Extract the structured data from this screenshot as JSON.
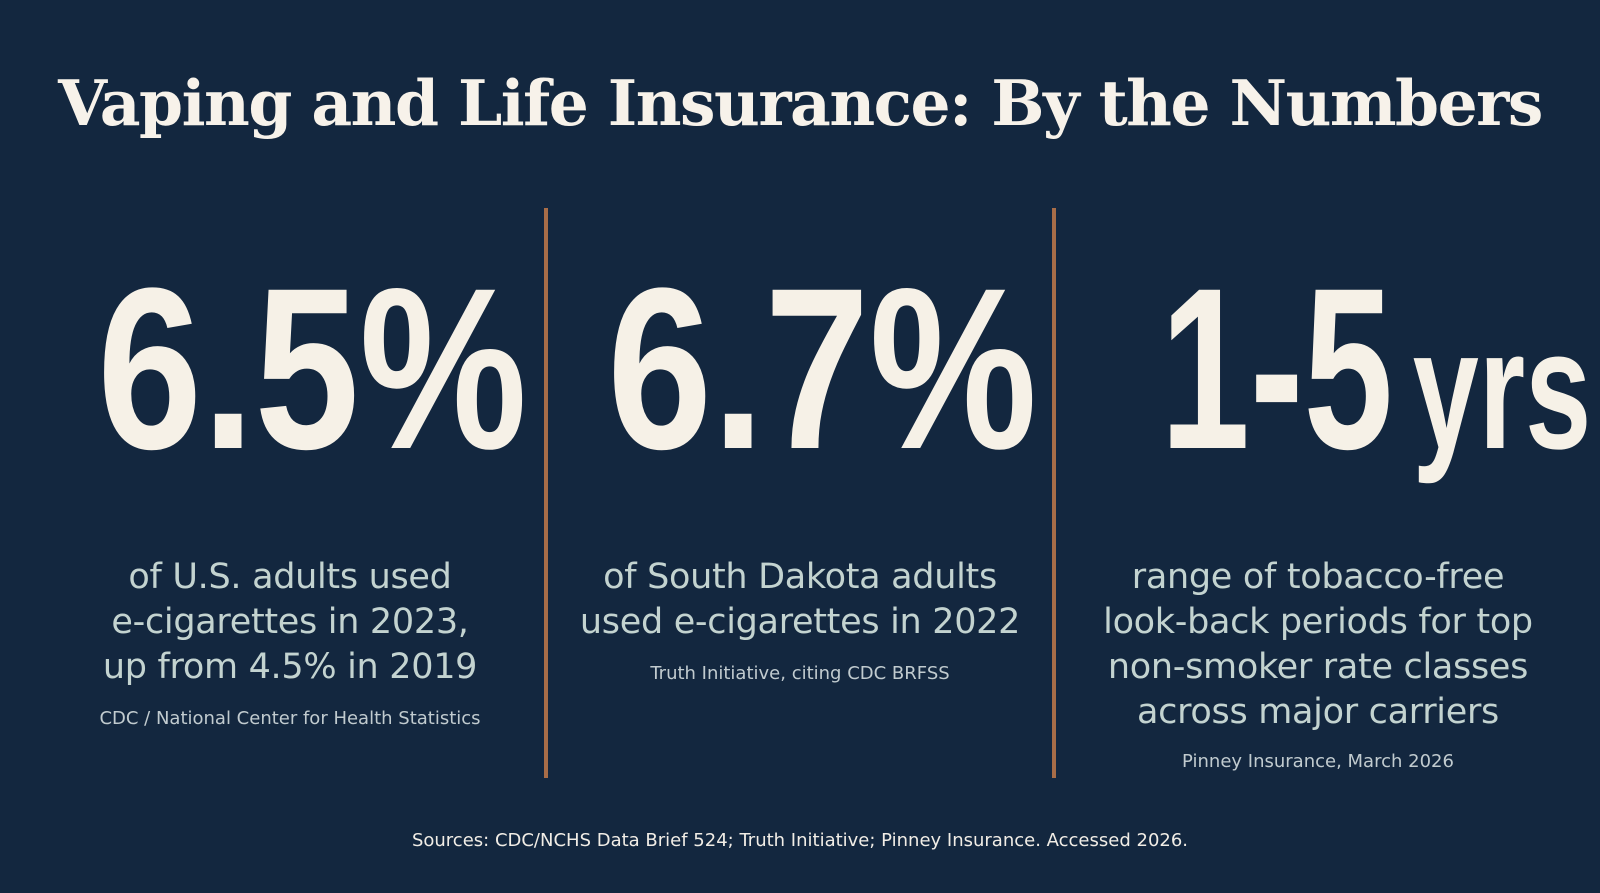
{
  "title": "Vaping and Life Insurance: By the Numbers",
  "stats": [
    {
      "value": "6.5%",
      "description": [
        "of U.S. adults used",
        "e-cigarettes in 2023,",
        "up from 4.5% in 2019"
      ],
      "source": "CDC / National Center for Health Statistics"
    },
    {
      "value": "6.7%",
      "description": [
        "of South Dakota adults",
        "used e-cigarettes in 2022"
      ],
      "source": "Truth Initiative, citing CDC BRFSS"
    },
    {
      "value": "1-5",
      "unit": "yrs",
      "description": [
        "range of tobacco-free",
        "look-back periods for top",
        "non-smoker rate classes",
        "across major carriers"
      ],
      "source": "Pinney Insurance, March 2026"
    }
  ],
  "footer": "Sources: CDC/NCHS Data Brief 524; Truth Initiative; Pinney Insurance. Accessed 2026.",
  "colors": {
    "background": "#13273f",
    "accent_divider": "#a86d48",
    "headline_text": "#f6f1e7",
    "description_text": "#c3d3d0"
  }
}
